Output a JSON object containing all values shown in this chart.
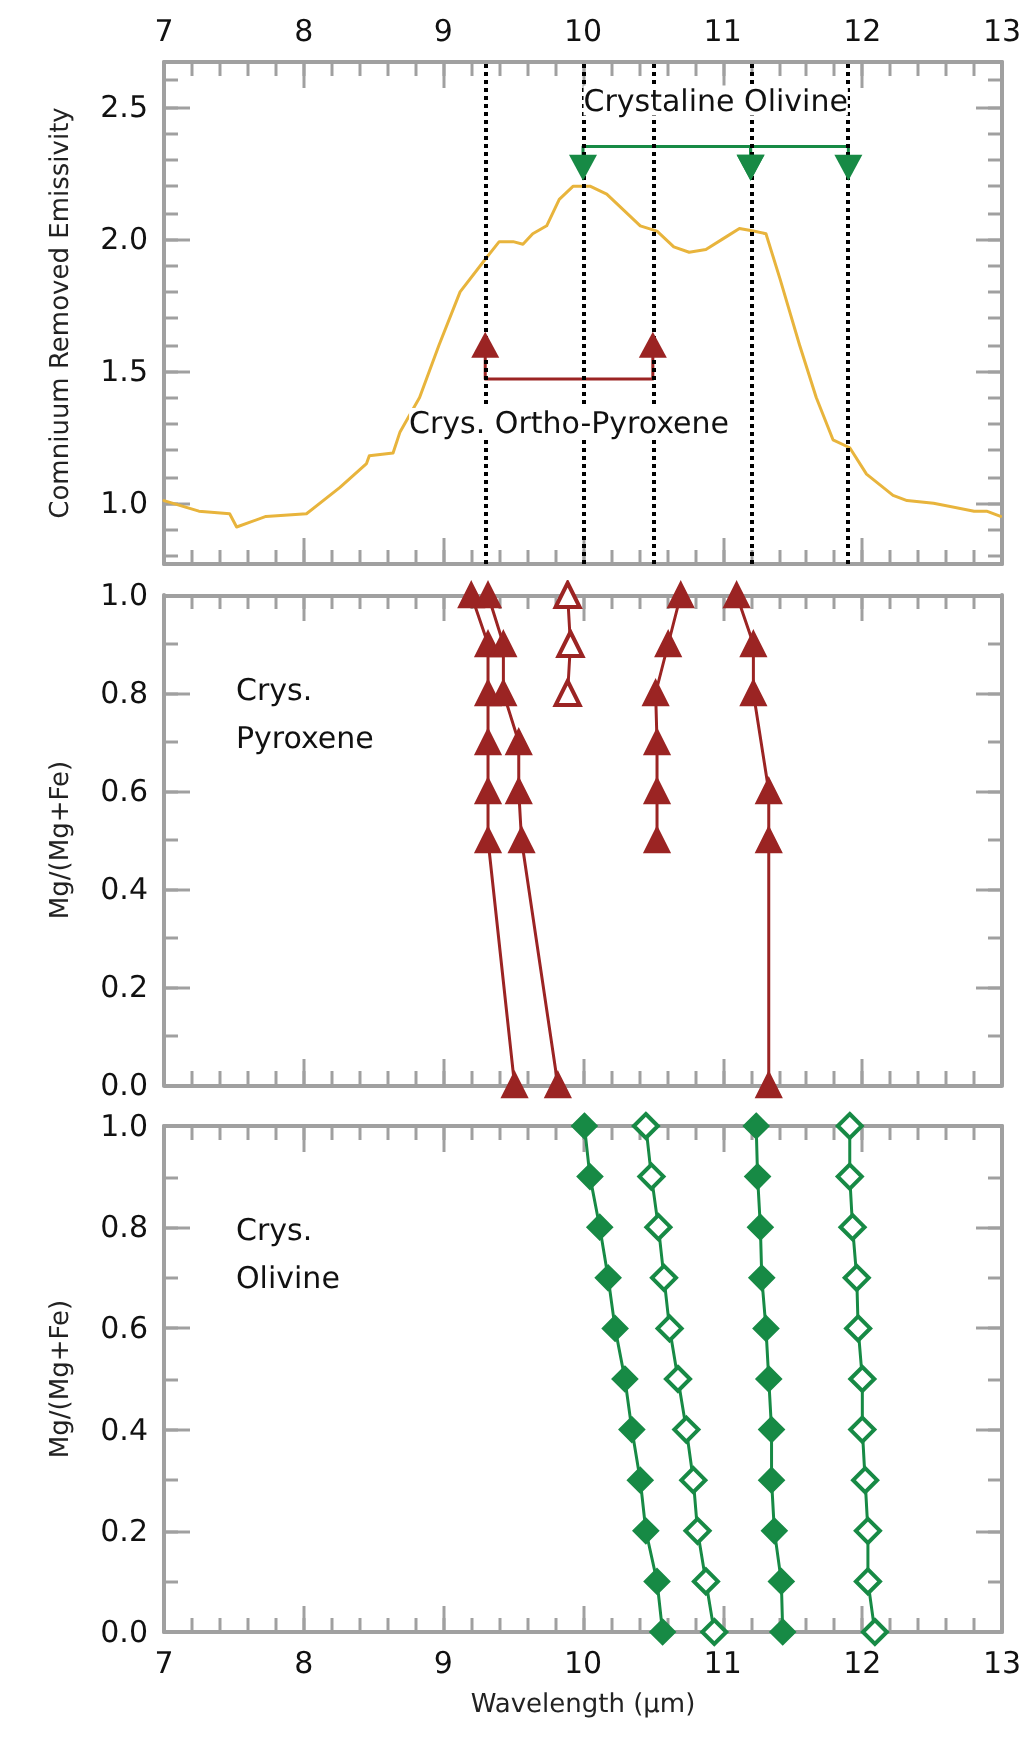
{
  "chart_data": [
    {
      "type": "line",
      "ylabel": "Comniuum Removed Emissivity",
      "xlim": [
        7,
        13
      ],
      "xticks": [
        7,
        8,
        9,
        10,
        11,
        12,
        13
      ],
      "ylim": [
        0.77,
        2.67
      ],
      "yticks": [
        {
          "value": 1,
          "label": "1.0"
        },
        {
          "value": 1.5,
          "label": "1.5"
        },
        {
          "value": 2,
          "label": "2.0"
        },
        {
          "value": 2.5,
          "label": "2.5"
        }
      ],
      "marker": "none",
      "line_style": "solid",
      "series": [
        {
          "color": "#e8b43c",
          "x": [
            7.0,
            7.25,
            7.47,
            7.52,
            7.73,
            8.02,
            8.26,
            8.45,
            8.47,
            8.64,
            8.69,
            8.83,
            8.97,
            9.12,
            9.31,
            9.4,
            9.5,
            9.57,
            9.64,
            9.74,
            9.83,
            9.93,
            10.05,
            10.17,
            10.31,
            10.41,
            10.53,
            10.65,
            10.76,
            10.88,
            11.03,
            11.12,
            11.22,
            11.31,
            11.41,
            11.55,
            11.67,
            11.79,
            11.91,
            12.03,
            12.22,
            12.32,
            12.51,
            12.8,
            12.89,
            12.99
          ],
          "values": [
            1.01,
            0.97,
            0.96,
            0.91,
            0.95,
            0.96,
            1.06,
            1.15,
            1.18,
            1.19,
            1.27,
            1.4,
            1.6,
            1.8,
            1.93,
            1.99,
            1.99,
            1.98,
            2.02,
            2.05,
            2.15,
            2.2,
            2.2,
            2.17,
            2.1,
            2.05,
            2.03,
            1.97,
            1.95,
            1.96,
            2.01,
            2.04,
            2.03,
            2.02,
            1.85,
            1.6,
            1.4,
            1.24,
            1.21,
            1.11,
            1.03,
            1.01,
            1.0,
            0.97,
            0.97,
            0.95
          ]
        },
        {
          "color": "#9b2423",
          "marker": "triangle",
          "x": [
            9.3,
            9.3,
            10.5,
            10.5
          ],
          "values": [
            1.6,
            1.47,
            1.47,
            1.6
          ]
        },
        {
          "color": "#178a45",
          "marker": "triangle",
          "x": [
            10.0,
            10.0,
            11.2,
            11.2
          ],
          "values": [
            2.27,
            2.35,
            2.35,
            2.27
          ]
        },
        {
          "color": "#178a45",
          "marker": "triangle",
          "x": [
            11.2,
            11.2,
            11.9,
            11.9
          ],
          "values": [
            2.27,
            2.35,
            2.35,
            2.27
          ]
        }
      ],
      "ref_lines": [
        {
          "axis": "x",
          "value": 9.3,
          "color": "#000000",
          "line_style": "dotted"
        },
        {
          "axis": "x",
          "value": 10.0,
          "color": "#000000",
          "line_style": "dotted"
        },
        {
          "axis": "x",
          "value": 10.5,
          "color": "#000000",
          "line_style": "dotted"
        },
        {
          "axis": "x",
          "value": 11.2,
          "color": "#000000",
          "line_style": "dotted"
        },
        {
          "axis": "x",
          "value": 11.9,
          "color": "#000000",
          "line_style": "dotted"
        }
      ],
      "annotations": [
        "Crys. Ortho-Pyroxene",
        "Crystaline Olivine"
      ]
    },
    {
      "type": "line",
      "ylabel": "Mg/(Mg+Fe)",
      "xlim": [
        7,
        13
      ],
      "xticks": [
        7,
        8,
        9,
        10,
        11,
        12,
        13
      ],
      "ylim": [
        0,
        1
      ],
      "yticks": [
        {
          "value": 0,
          "label": "0.0"
        },
        {
          "value": 0.2,
          "label": "0.2"
        },
        {
          "value": 0.4,
          "label": "0.4"
        },
        {
          "value": 0.6,
          "label": "0.6"
        },
        {
          "value": 0.8,
          "label": "0.8"
        },
        {
          "value": 1,
          "label": "1.0"
        }
      ],
      "tick_labels": "y",
      "marker": "triangle",
      "line_style": "solid",
      "series": [
        {
          "color": "#9b2423",
          "x": [
            9.2,
            9.32,
            9.32,
            9.32,
            9.32,
            9.32,
            9.51
          ],
          "values": [
            1.0,
            0.9,
            0.8,
            0.7,
            0.6,
            0.5,
            0.0
          ]
        },
        {
          "color": "#9b2423",
          "x": [
            9.32,
            9.43,
            9.43,
            9.54,
            9.54,
            9.56,
            9.82
          ],
          "values": [
            1.0,
            0.9,
            0.8,
            0.7,
            0.6,
            0.5,
            0.0
          ]
        },
        {
          "color": "#9b2423",
          "marker": "triangle_open",
          "x": [
            9.89,
            9.91,
            9.89
          ],
          "values": [
            1.0,
            0.9,
            0.8
          ]
        },
        {
          "color": "#9b2423",
          "x": [
            10.7,
            10.61,
            10.52,
            10.53,
            10.53,
            10.53
          ],
          "values": [
            1.0,
            0.9,
            0.8,
            0.7,
            0.6,
            0.5
          ]
        },
        {
          "color": "#9b2423",
          "x": [
            11.1,
            11.22,
            11.22,
            11.33,
            11.33,
            11.33
          ],
          "values": [
            1.0,
            0.9,
            0.8,
            0.6,
            0.5,
            0.0
          ]
        }
      ],
      "annotations": [
        "Crys. Pyroxene"
      ]
    },
    {
      "type": "line",
      "xlabel": "Wavelength (μm)",
      "ylabel": "Mg/(Mg+Fe)",
      "xlim": [
        7,
        13
      ],
      "xticks": [
        7,
        8,
        9,
        10,
        11,
        12,
        13
      ],
      "ylim": [
        0,
        1
      ],
      "yticks": [
        {
          "value": 0,
          "label": "0.0"
        },
        {
          "value": 0.2,
          "label": "0.2"
        },
        {
          "value": 0.4,
          "label": "0.4"
        },
        {
          "value": 0.6,
          "label": "0.6"
        },
        {
          "value": 0.8,
          "label": "0.8"
        },
        {
          "value": 1,
          "label": "1.0"
        }
      ],
      "marker": "diamond",
      "line_style": "solid",
      "series": [
        {
          "color": "#178a45",
          "x": [
            10.01,
            10.05,
            10.12,
            10.18,
            10.23,
            10.3,
            10.35,
            10.41,
            10.45,
            10.53,
            10.57
          ],
          "values": [
            1.0,
            0.9,
            0.8,
            0.7,
            0.6,
            0.5,
            0.4,
            0.3,
            0.2,
            0.1,
            0.0
          ]
        },
        {
          "color": "#178a45",
          "marker": "diamond_open",
          "x": [
            10.45,
            10.49,
            10.54,
            10.58,
            10.62,
            10.68,
            10.74,
            10.79,
            10.82,
            10.88,
            10.94
          ],
          "values": [
            1.0,
            0.9,
            0.8,
            0.7,
            0.6,
            0.5,
            0.4,
            0.3,
            0.2,
            0.1,
            0.0
          ]
        },
        {
          "color": "#178a45",
          "x": [
            11.24,
            11.25,
            11.27,
            11.28,
            11.31,
            11.33,
            11.35,
            11.35,
            11.37,
            11.42,
            11.43
          ],
          "values": [
            1.0,
            0.9,
            0.8,
            0.7,
            0.6,
            0.5,
            0.4,
            0.3,
            0.2,
            0.1,
            0.0
          ]
        },
        {
          "color": "#178a45",
          "marker": "diamond_open",
          "x": [
            11.91,
            11.91,
            11.93,
            11.96,
            11.97,
            12.0,
            12.0,
            12.02,
            12.04,
            12.04,
            12.09
          ],
          "values": [
            1.0,
            0.9,
            0.8,
            0.7,
            0.6,
            0.5,
            0.4,
            0.3,
            0.2,
            0.1,
            0.0
          ]
        }
      ],
      "annotations": [
        "Crys. Olivine"
      ]
    }
  ]
}
